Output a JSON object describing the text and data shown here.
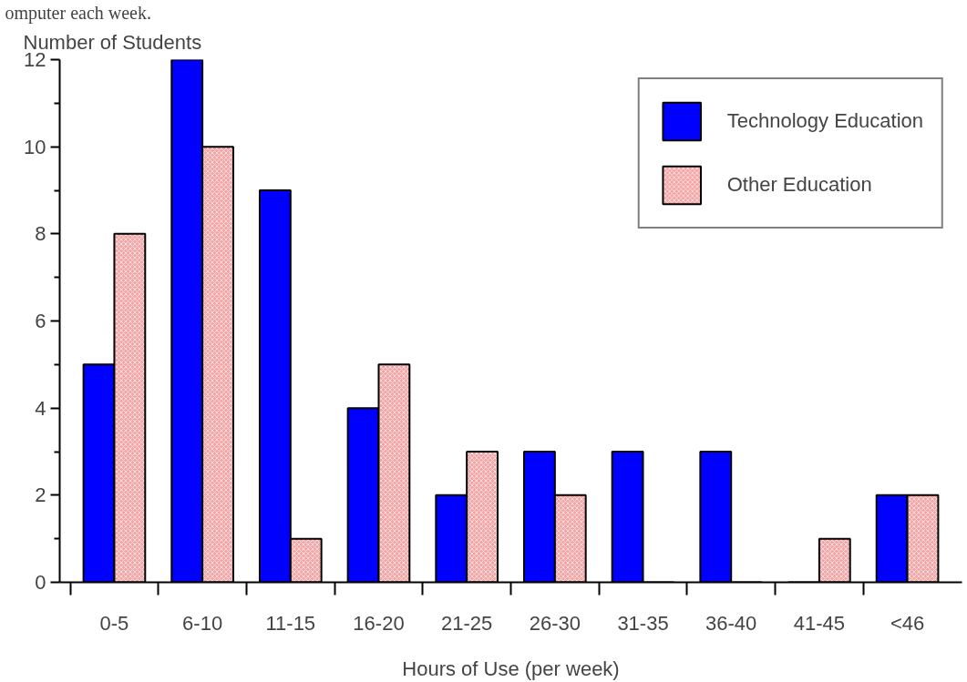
{
  "chart_data": {
    "type": "bar",
    "xlabel": "Hours of Use (per week)",
    "ylabel": "Number of Students",
    "annotations": [
      "omputer each week."
    ],
    "categories": [
      "0-5",
      "6-10",
      "11-15",
      "16-20",
      "21-25",
      "26-30",
      "31-35",
      "36-40",
      "41-45",
      "<46"
    ],
    "series": [
      {
        "name": "Technology Education",
        "color": "#0000ff",
        "values": [
          5,
          12,
          9,
          4,
          2,
          3,
          3,
          3,
          0,
          2
        ]
      },
      {
        "name": "Other Education",
        "color": "#f4a6a6",
        "values": [
          8,
          10,
          1,
          5,
          3,
          2,
          0,
          0,
          1,
          2
        ]
      }
    ],
    "ylim": [
      0,
      12
    ],
    "yticks": [
      0,
      2,
      4,
      6,
      8,
      10,
      12
    ],
    "grid": false,
    "legend": "top right"
  }
}
